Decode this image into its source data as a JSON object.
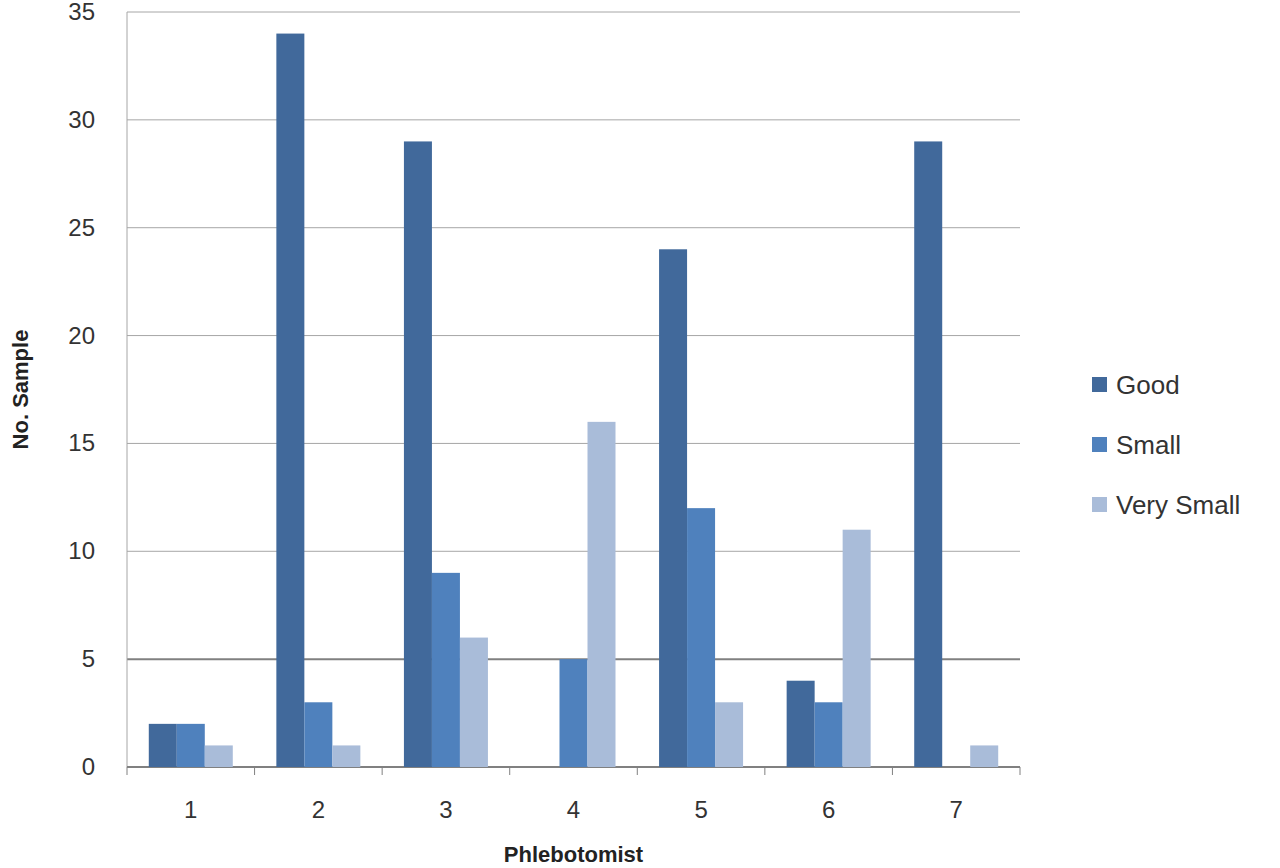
{
  "chart_data": {
    "type": "bar",
    "x_label": "Phlebotomist",
    "y_label": "No. Sample",
    "categories": [
      "1",
      "2",
      "3",
      "4",
      "5",
      "6",
      "7"
    ],
    "series": [
      {
        "name": "Good",
        "color": "#41699b",
        "values": [
          2,
          34,
          29,
          0,
          24,
          4,
          29
        ]
      },
      {
        "name": "Small",
        "color": "#4f81bd",
        "values": [
          2,
          3,
          9,
          5,
          12,
          3,
          0
        ]
      },
      {
        "name": "Very Small",
        "color": "#a9bcd9",
        "values": [
          1,
          1,
          6,
          16,
          3,
          11,
          1
        ]
      }
    ],
    "ylim": [
      0,
      35
    ],
    "yticks": [
      0,
      5,
      10,
      15,
      20,
      25,
      30,
      35
    ],
    "grid": true,
    "legend": "right"
  }
}
